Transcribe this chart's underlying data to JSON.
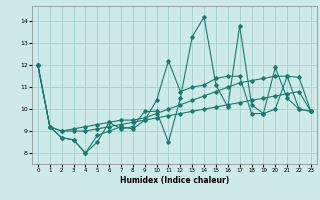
{
  "xlabel": "Humidex (Indice chaleur)",
  "background_color": "#cdeae8",
  "grid_color": "#a8d5d2",
  "line_color": "#1a7a6e",
  "xlim": [
    -0.5,
    23.5
  ],
  "ylim": [
    7.5,
    14.7
  ],
  "yticks": [
    8,
    9,
    10,
    11,
    12,
    13,
    14
  ],
  "xticks": [
    0,
    1,
    2,
    3,
    4,
    5,
    6,
    7,
    8,
    9,
    10,
    11,
    12,
    13,
    14,
    15,
    16,
    17,
    18,
    19,
    20,
    21,
    22,
    23
  ],
  "series": [
    [
      12.0,
      9.2,
      8.7,
      8.6,
      8.0,
      8.5,
      9.4,
      9.1,
      9.2,
      9.9,
      9.9,
      8.5,
      10.5,
      13.3,
      14.2,
      11.1,
      10.1,
      13.8,
      10.2,
      9.8,
      11.9,
      10.5,
      10.0,
      9.9
    ],
    [
      12.0,
      9.2,
      8.7,
      8.6,
      8.0,
      8.8,
      9.0,
      9.2,
      9.1,
      9.5,
      10.4,
      12.2,
      10.8,
      11.0,
      11.1,
      11.4,
      11.5,
      11.5,
      9.8,
      9.8,
      10.0,
      11.5,
      10.0,
      9.9
    ],
    [
      12.0,
      9.2,
      9.0,
      9.0,
      9.0,
      9.1,
      9.2,
      9.3,
      9.4,
      9.5,
      9.6,
      9.7,
      9.8,
      9.9,
      10.0,
      10.1,
      10.2,
      10.3,
      10.4,
      10.5,
      10.6,
      10.7,
      10.8,
      9.9
    ],
    [
      12.0,
      9.2,
      9.0,
      9.1,
      9.2,
      9.3,
      9.4,
      9.5,
      9.5,
      9.6,
      9.8,
      10.0,
      10.2,
      10.4,
      10.6,
      10.8,
      11.0,
      11.2,
      11.3,
      11.4,
      11.5,
      11.5,
      11.45,
      9.9
    ]
  ]
}
